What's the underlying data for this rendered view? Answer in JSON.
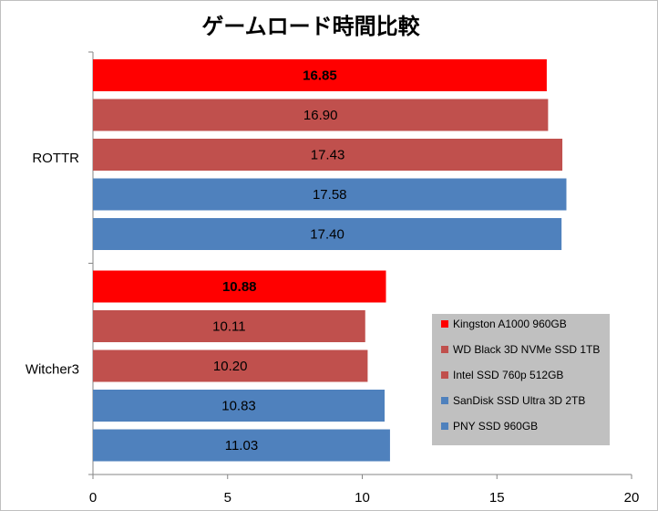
{
  "chart_data": {
    "type": "bar",
    "orientation": "horizontal",
    "title": "ゲームロード時間比較",
    "categories": [
      "ROTTR",
      "Witcher3"
    ],
    "series": [
      {
        "name": "Kingston A1000 960GB",
        "color": "#ff0000",
        "bold_label": true,
        "values": [
          16.85,
          10.88
        ]
      },
      {
        "name": "WD Black 3D NVMe SSD 1TB",
        "color": "#c0504d",
        "bold_label": false,
        "values": [
          16.9,
          10.11
        ]
      },
      {
        "name": "Intel SSD 760p 512GB",
        "color": "#c0504d",
        "bold_label": false,
        "values": [
          17.43,
          10.2
        ]
      },
      {
        "name": "SanDisk SSD Ultra 3D 2TB",
        "color": "#4f81bd",
        "bold_label": false,
        "values": [
          17.58,
          10.83
        ]
      },
      {
        "name": "PNY SSD 960GB",
        "color": "#4f81bd",
        "bold_label": false,
        "values": [
          17.4,
          11.03
        ]
      }
    ],
    "data_labels": [
      [
        "16.85",
        "16.90",
        "17.43",
        "17.58",
        "17.40"
      ],
      [
        "10.88",
        "10.11",
        "10.20",
        "10.83",
        "11.03"
      ]
    ],
    "xlim": [
      0,
      20
    ],
    "xticks": [
      0,
      5,
      10,
      15,
      20
    ],
    "xtick_labels": [
      "0",
      "5",
      "10",
      "15",
      "20"
    ],
    "grid": false,
    "legend": {
      "position": "bottom-right",
      "background": "#c0c0c0"
    }
  }
}
